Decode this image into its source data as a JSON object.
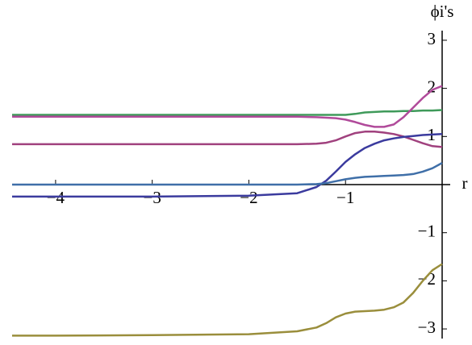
{
  "chart_data": {
    "type": "line",
    "x_label": "r",
    "y_label": "ϕi's",
    "x": [
      -4.45,
      -4,
      -3,
      -2,
      -1.5,
      -1.3,
      -1.2,
      -1.1,
      -1,
      -0.9,
      -0.8,
      -0.7,
      -0.6,
      -0.5,
      -0.4,
      -0.3,
      -0.2,
      -0.1,
      0
    ],
    "series": [
      {
        "color": "#3f9a5a",
        "values": [
          1.45,
          1.45,
          1.45,
          1.45,
          1.45,
          1.45,
          1.45,
          1.45,
          1.45,
          1.47,
          1.5,
          1.51,
          1.52,
          1.52,
          1.53,
          1.53,
          1.54,
          1.54,
          1.55
        ]
      },
      {
        "color": "#b04a9a",
        "values": [
          1.41,
          1.41,
          1.41,
          1.41,
          1.41,
          1.4,
          1.39,
          1.38,
          1.35,
          1.3,
          1.24,
          1.2,
          1.2,
          1.25,
          1.4,
          1.6,
          1.8,
          1.97,
          2.05
        ]
      },
      {
        "color": "#a0417e",
        "values": [
          0.84,
          0.84,
          0.84,
          0.84,
          0.84,
          0.85,
          0.87,
          0.92,
          1.0,
          1.07,
          1.1,
          1.1,
          1.08,
          1.05,
          1.0,
          0.93,
          0.86,
          0.8,
          0.78
        ]
      },
      {
        "color": "#3b3b9e",
        "values": [
          -0.25,
          -0.25,
          -0.25,
          -0.23,
          -0.18,
          -0.05,
          0.08,
          0.27,
          0.47,
          0.63,
          0.76,
          0.85,
          0.92,
          0.96,
          0.99,
          1.01,
          1.03,
          1.04,
          1.05
        ]
      },
      {
        "color": "#3f6fa8",
        "values": [
          0,
          0,
          0,
          0,
          0,
          0.01,
          0.03,
          0.07,
          0.11,
          0.14,
          0.16,
          0.17,
          0.18,
          0.19,
          0.2,
          0.22,
          0.27,
          0.34,
          0.45
        ]
      },
      {
        "color": "#9a8e3c",
        "values": [
          -3.14,
          -3.14,
          -3.13,
          -3.11,
          -3.05,
          -2.97,
          -2.88,
          -2.76,
          -2.68,
          -2.64,
          -2.63,
          -2.62,
          -2.6,
          -2.55,
          -2.45,
          -2.25,
          -2.0,
          -1.78,
          -1.65
        ]
      }
    ],
    "xlim": [
      -4.45,
      0
    ],
    "ylim": [
      -3.2,
      3.2
    ],
    "xticks": [
      {
        "value": -4,
        "label": "−4"
      },
      {
        "value": -3,
        "label": "−3"
      },
      {
        "value": -2,
        "label": "−2"
      },
      {
        "value": -1,
        "label": "−1"
      }
    ],
    "yticks": [
      {
        "value": -3,
        "label": "−3"
      },
      {
        "value": -2,
        "label": "−2"
      },
      {
        "value": -1,
        "label": "−1"
      },
      1,
      2,
      3
    ]
  }
}
